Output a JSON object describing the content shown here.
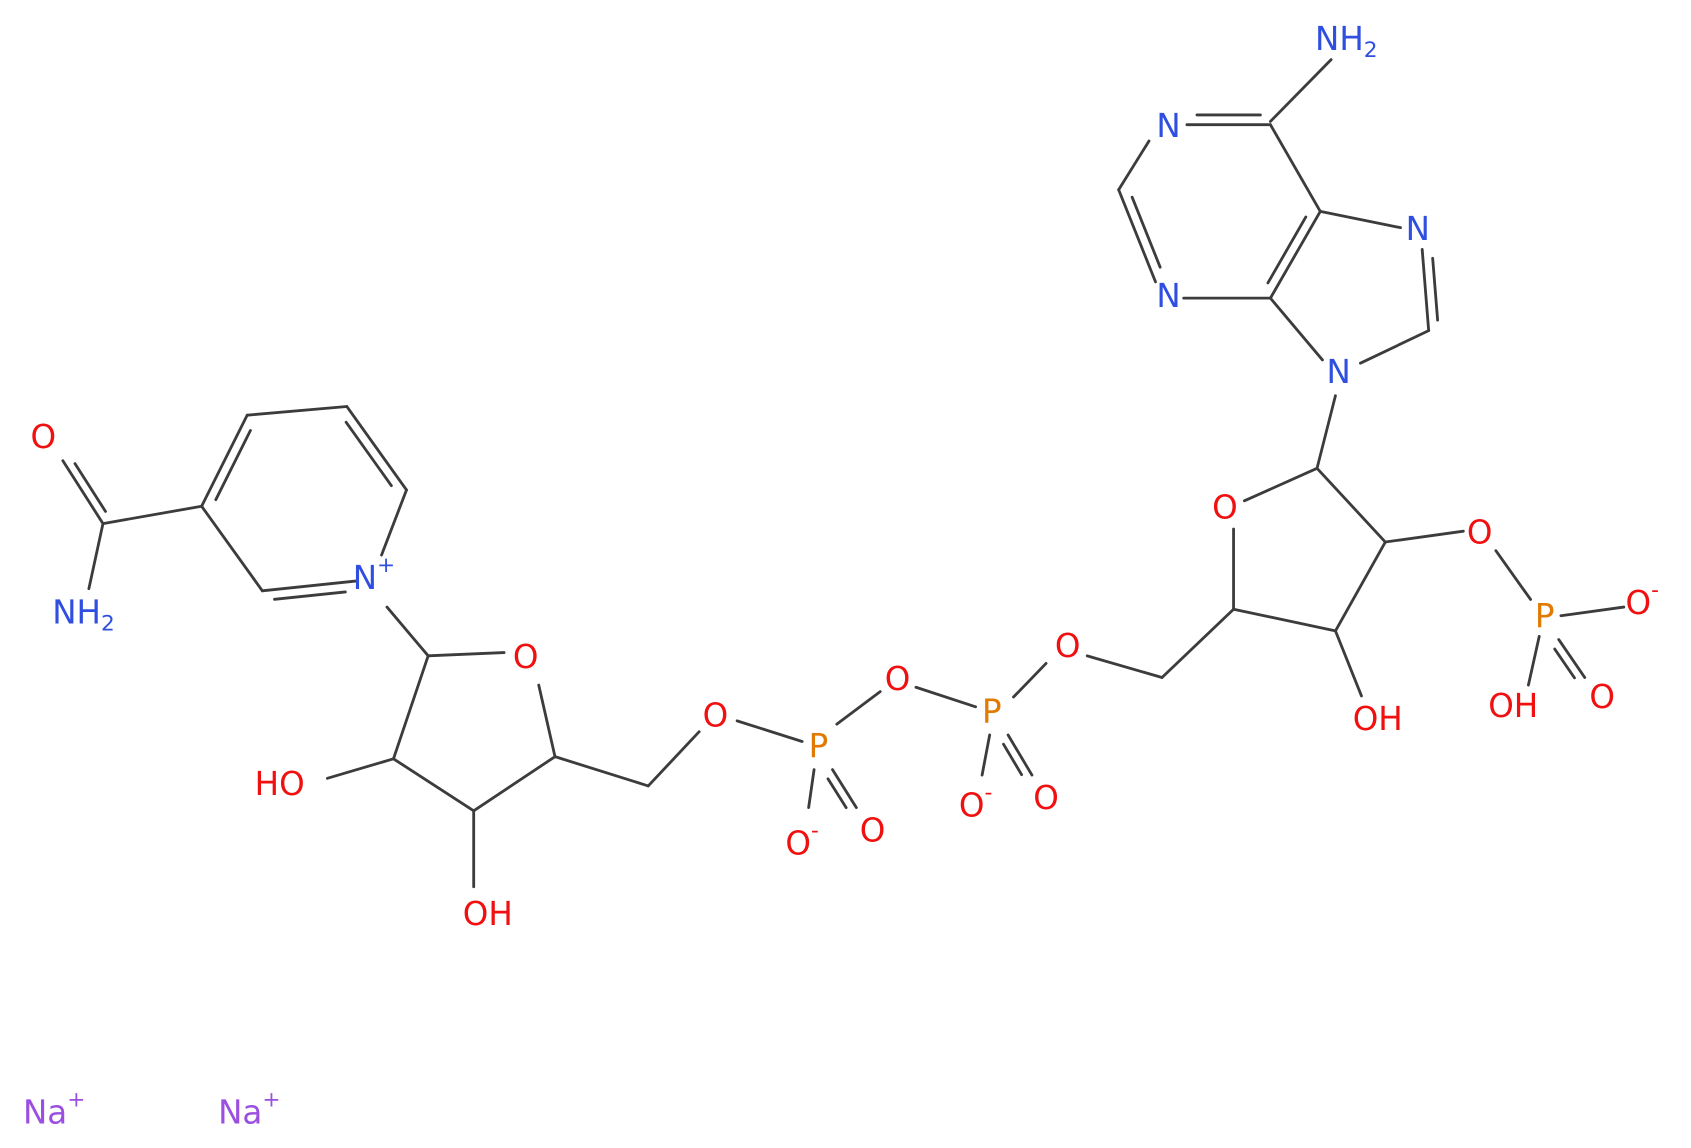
{
  "atoms": [
    {
      "text": "NH",
      "sub": "2",
      "color": "#2f4fe0"
    },
    {
      "text": "N",
      "color": "#2f4fe0"
    },
    {
      "text": "N",
      "color": "#2f4fe0"
    },
    {
      "text": "N",
      "color": "#2f4fe0"
    },
    {
      "text": "N",
      "color": "#2f4fe0"
    },
    {
      "text": "O",
      "color": "#f01010"
    },
    {
      "text": "O",
      "color": "#f01010"
    },
    {
      "text": "P",
      "color": "#e07a00"
    },
    {
      "text": "O",
      "sup": "-",
      "color": "#f01010"
    },
    {
      "text": "OH",
      "color": "#f01010"
    },
    {
      "text": "OH",
      "color": "#f01010"
    },
    {
      "text": "O",
      "color": "#f01010"
    },
    {
      "text": "O",
      "color": "#f01010"
    },
    {
      "text": "NH",
      "sub": "2",
      "color": "#2f4fe0"
    },
    {
      "text": "N",
      "sup": "+",
      "color": "#2f4fe0"
    },
    {
      "text": "O",
      "color": "#f01010"
    },
    {
      "text": "HO",
      "color": "#f01010"
    },
    {
      "text": "OH",
      "color": "#f01010"
    },
    {
      "text": "O",
      "color": "#f01010"
    },
    {
      "text": "P",
      "color": "#e07a00"
    },
    {
      "text": "O",
      "sup": "-",
      "color": "#f01010"
    },
    {
      "text": "O",
      "color": "#f01010"
    },
    {
      "text": "O",
      "color": "#f01010"
    },
    {
      "text": "P",
      "color": "#e07a00"
    },
    {
      "text": "O",
      "sup": "-",
      "color": "#f01010"
    },
    {
      "text": "O",
      "color": "#f01010"
    },
    {
      "text": "O",
      "color": "#f01010"
    },
    {
      "text": "Na",
      "sup": "+",
      "color": "#9b4fe0"
    },
    {
      "text": "Na",
      "sup": "+",
      "color": "#9b4fe0"
    }
  ]
}
